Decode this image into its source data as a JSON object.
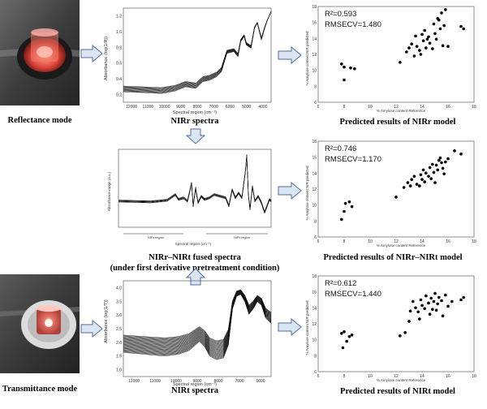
{
  "captions": {
    "reflectance_mode": "Reflectance mode",
    "transmittance_mode": "Transmittance mode",
    "nirr_spectra": "NIRr spectra",
    "nirt_spectra": "NIRt spectra",
    "fused_title": "NIRr–NIRt fused spectra",
    "fused_sub": "(under first derivative pretreatment condition)",
    "pred_nirr": "Predicted results of NIRr model",
    "pred_fused": "Predicted results of NIRr–NIRt model",
    "pred_nirt": "Predicted results of NIRt model"
  },
  "spectra": {
    "nirr": {
      "ylabel": "Absorbance (log(1/R))",
      "xlabel": "Spectral region (cm⁻¹)",
      "yticks": [
        "0.2",
        "0.4",
        "0.6",
        "0.8",
        "1.0",
        "1.2"
      ],
      "xticks": [
        "12000",
        "11000",
        "10000",
        "9000",
        "8000",
        "7000",
        "6000",
        "5000",
        "4000"
      ]
    },
    "fused": {
      "ylabel": "Absorbance range (a.u.)",
      "xlabel": "Spectral region (cm⁻¹)",
      "region_left": "NIRr region",
      "region_right": "NIRt region"
    },
    "nirt": {
      "ylabel": "Absorbance (log(1/T))",
      "xlabel": "Spectral region (cm⁻¹)",
      "yticks": [
        "1.0",
        "1.5",
        "2.0",
        "2.5",
        "3.0",
        "3.5",
        "4.0"
      ],
      "xticks": [
        "12000",
        "11000",
        "10000",
        "9000",
        "8000",
        "7000",
        "6000"
      ]
    }
  },
  "scatter": {
    "xlabel": "% Amylose content Reference",
    "ylabel": "% Amylose content NIR predicted",
    "xticks": [
      "6",
      "8",
      "10",
      "12",
      "14",
      "16",
      "18"
    ],
    "yticks": [
      "6",
      "8",
      "10",
      "12",
      "14",
      "16",
      "18"
    ],
    "nirr": {
      "r2": "R²=0.593",
      "rmsecv": "RMSECV=1.480",
      "points": [
        [
          7.8,
          10.8
        ],
        [
          8.0,
          10.4
        ],
        [
          8.5,
          10.3
        ],
        [
          8.8,
          10.2
        ],
        [
          8.0,
          8.8
        ],
        [
          12.3,
          11.0
        ],
        [
          12.8,
          12.3
        ],
        [
          13.0,
          12.8
        ],
        [
          13.2,
          13.3
        ],
        [
          13.4,
          11.8
        ],
        [
          13.5,
          14.3
        ],
        [
          13.6,
          13.0
        ],
        [
          13.8,
          12.5
        ],
        [
          13.9,
          12.0
        ],
        [
          14.0,
          14.5
        ],
        [
          14.1,
          13.7
        ],
        [
          14.2,
          15.0
        ],
        [
          14.3,
          12.8
        ],
        [
          14.4,
          13.9
        ],
        [
          14.5,
          14.2
        ],
        [
          14.6,
          13.4
        ],
        [
          14.8,
          12.7
        ],
        [
          14.9,
          15.8
        ],
        [
          15.0,
          14.6
        ],
        [
          15.1,
          13.9
        ],
        [
          15.2,
          16.5
        ],
        [
          15.3,
          16.3
        ],
        [
          15.4,
          15.2
        ],
        [
          15.5,
          17.2
        ],
        [
          15.6,
          13.1
        ],
        [
          15.7,
          15.6
        ],
        [
          15.8,
          17.6
        ],
        [
          16.0,
          13.0
        ],
        [
          17.0,
          15.5
        ],
        [
          17.2,
          15.2
        ]
      ]
    },
    "fused": {
      "r2": "R²=0.746",
      "rmsecv": "RMSECV=1.170",
      "points": [
        [
          7.8,
          8.2
        ],
        [
          8.0,
          9.2
        ],
        [
          8.1,
          10.2
        ],
        [
          8.4,
          10.4
        ],
        [
          8.6,
          9.8
        ],
        [
          12.0,
          11.0
        ],
        [
          12.6,
          12.2
        ],
        [
          12.9,
          12.8
        ],
        [
          13.1,
          12.4
        ],
        [
          13.2,
          13.2
        ],
        [
          13.4,
          13.6
        ],
        [
          13.6,
          12.6
        ],
        [
          13.8,
          12.4
        ],
        [
          13.9,
          13.8
        ],
        [
          14.0,
          13.2
        ],
        [
          14.1,
          14.4
        ],
        [
          14.2,
          12.9
        ],
        [
          14.3,
          14.0
        ],
        [
          14.5,
          13.6
        ],
        [
          14.6,
          14.7
        ],
        [
          14.7,
          13.3
        ],
        [
          14.8,
          15.1
        ],
        [
          14.9,
          14.1
        ],
        [
          15.0,
          12.8
        ],
        [
          15.1,
          15.0
        ],
        [
          15.2,
          14.4
        ],
        [
          15.3,
          15.6
        ],
        [
          15.4,
          15.9
        ],
        [
          15.5,
          15.3
        ],
        [
          15.6,
          14.6
        ],
        [
          15.7,
          13.9
        ],
        [
          15.8,
          15.4
        ],
        [
          16.0,
          15.8
        ],
        [
          16.5,
          16.8
        ],
        [
          17.0,
          16.4
        ]
      ]
    },
    "nirt": {
      "r2": "R²=0.612",
      "rmsecv": "RMSECV=1.440",
      "points": [
        [
          7.8,
          10.8
        ],
        [
          8.0,
          11.0
        ],
        [
          8.2,
          9.8
        ],
        [
          8.4,
          10.4
        ],
        [
          7.9,
          9.0
        ],
        [
          8.6,
          10.6
        ],
        [
          12.3,
          10.5
        ],
        [
          12.7,
          10.9
        ],
        [
          13.0,
          12.3
        ],
        [
          13.1,
          13.6
        ],
        [
          13.3,
          14.8
        ],
        [
          13.5,
          14.0
        ],
        [
          13.7,
          13.5
        ],
        [
          13.8,
          12.6
        ],
        [
          13.9,
          15.0
        ],
        [
          14.0,
          14.3
        ],
        [
          14.2,
          13.9
        ],
        [
          14.3,
          15.5
        ],
        [
          14.5,
          14.6
        ],
        [
          14.6,
          13.2
        ],
        [
          14.7,
          15.2
        ],
        [
          14.8,
          13.8
        ],
        [
          14.9,
          14.8
        ],
        [
          15.0,
          15.8
        ],
        [
          15.1,
          13.7
        ],
        [
          15.2,
          14.5
        ],
        [
          15.3,
          15.3
        ],
        [
          15.5,
          14.9
        ],
        [
          15.6,
          13.0
        ],
        [
          15.8,
          15.6
        ],
        [
          16.0,
          14.2
        ],
        [
          16.3,
          14.8
        ],
        [
          17.0,
          15.0
        ],
        [
          17.2,
          15.3
        ]
      ]
    }
  }
}
